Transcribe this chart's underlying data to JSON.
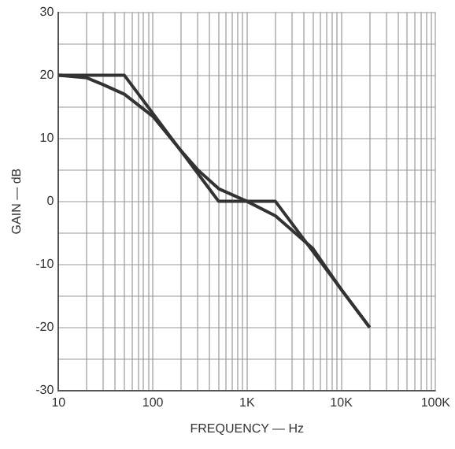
{
  "chart_data": {
    "type": "line",
    "xlabel": "FREQUENCY — Hz",
    "ylabel": "GAIN — dB",
    "log": "x",
    "grid": true,
    "legend": false,
    "marker": "none",
    "line_style": "solid",
    "xlim": [
      10,
      100000
    ],
    "ylim": [
      -30,
      30
    ],
    "xticks": [
      {
        "value": 10,
        "label": "10"
      },
      {
        "value": 20,
        "label": null
      },
      {
        "value": 30,
        "label": null
      },
      {
        "value": 40,
        "label": null
      },
      {
        "value": 50,
        "label": null
      },
      {
        "value": 60,
        "label": null
      },
      {
        "value": 70,
        "label": null
      },
      {
        "value": 80,
        "label": null
      },
      {
        "value": 90,
        "label": null
      },
      {
        "value": 100,
        "label": "100"
      },
      {
        "value": 200,
        "label": null
      },
      {
        "value": 300,
        "label": null
      },
      {
        "value": 400,
        "label": null
      },
      {
        "value": 500,
        "label": null
      },
      {
        "value": 600,
        "label": null
      },
      {
        "value": 700,
        "label": null
      },
      {
        "value": 800,
        "label": null
      },
      {
        "value": 900,
        "label": null
      },
      {
        "value": 1000,
        "label": "1K"
      },
      {
        "value": 2000,
        "label": null
      },
      {
        "value": 3000,
        "label": null
      },
      {
        "value": 4000,
        "label": null
      },
      {
        "value": 5000,
        "label": null
      },
      {
        "value": 6000,
        "label": null
      },
      {
        "value": 7000,
        "label": null
      },
      {
        "value": 8000,
        "label": null
      },
      {
        "value": 9000,
        "label": null
      },
      {
        "value": 10000,
        "label": "10K"
      },
      {
        "value": 20000,
        "label": null
      },
      {
        "value": 30000,
        "label": null
      },
      {
        "value": 40000,
        "label": null
      },
      {
        "value": 50000,
        "label": null
      },
      {
        "value": 60000,
        "label": null
      },
      {
        "value": 70000,
        "label": null
      },
      {
        "value": 80000,
        "label": null
      },
      {
        "value": 90000,
        "label": null
      },
      {
        "value": 100000,
        "label": "100K"
      }
    ],
    "yticks": [
      -30,
      {
        "value": -25,
        "label": null
      },
      -20,
      {
        "value": -15,
        "label": null
      },
      -10,
      {
        "value": -5,
        "label": null
      },
      0,
      {
        "value": 5,
        "label": null
      },
      10,
      {
        "value": 15,
        "label": null
      },
      20,
      {
        "value": 25,
        "label": null
      },
      30
    ],
    "series": [
      {
        "color": "#333333",
        "x": [
          10,
          50,
          500,
          2000,
          20000
        ],
        "values": [
          20,
          20,
          0,
          0,
          -20
        ]
      },
      {
        "color": "#333333",
        "x": [
          10,
          20,
          30,
          50,
          100,
          200,
          300,
          500,
          1000,
          2000,
          5000,
          10000,
          20000
        ],
        "values": [
          20,
          19.6,
          18.5,
          17,
          13.5,
          8,
          5,
          2,
          0,
          -2.3,
          -7.5,
          -14,
          -20
        ]
      }
    ]
  }
}
